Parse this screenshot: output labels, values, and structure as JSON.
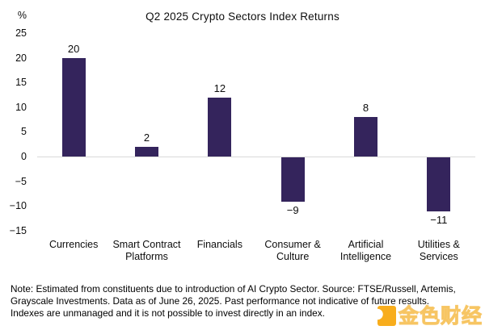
{
  "chart_data": {
    "type": "bar",
    "title": "Q2 2025 Crypto Sectors Index Returns",
    "y_unit": "%",
    "categories": [
      "Currencies",
      "Smart Contract Platforms",
      "Financials",
      "Consumer & Culture",
      "Artificial Intelligence",
      "Utilities & Services"
    ],
    "values": [
      20,
      2,
      12,
      -9,
      8,
      -11
    ],
    "bar_labels": [
      "20",
      "2",
      "12",
      "−9",
      "8",
      "−11"
    ],
    "ylim": [
      -15,
      25
    ],
    "ytick_step": 5,
    "yticks": [
      25,
      20,
      15,
      10,
      5,
      0,
      -5,
      -10,
      -15
    ],
    "xlabel": "",
    "ylabel": "%",
    "grid": "zero-baseline-only",
    "legend": "none",
    "bar_color": "#34245C",
    "zero_line_color": "#D9D9D9"
  },
  "note": {
    "lines": [
      "Note: Estimated from constituents due to introduction of AI Crypto Sector. Source: FTSE/Russell, Artemis,",
      "Grayscale Investments. Data as of June 26, 2025. Past performance not indicative of future results.",
      "Indexes are unmanaged and it is not possible to invest directly in an index."
    ]
  },
  "watermark": {
    "text": "金色财经",
    "icon": "jinse-logo-icon",
    "color": "#F8A70B"
  }
}
